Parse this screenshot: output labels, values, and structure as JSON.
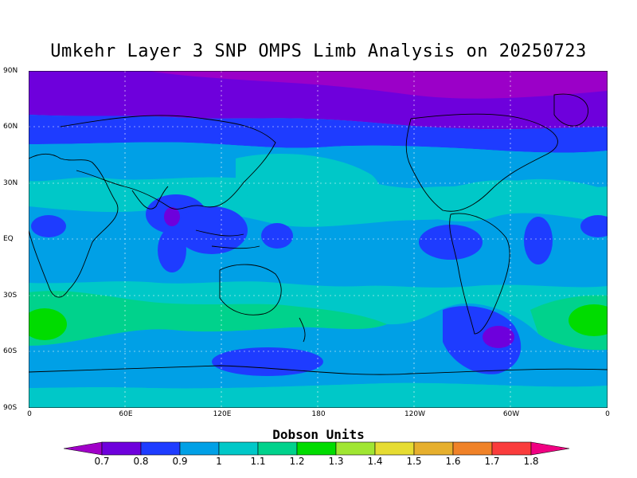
{
  "title": "Umkehr Layer 3 SNP OMPS Limb Analysis on 20250723",
  "lat_labels": [
    "90N",
    "60N",
    "30N",
    "EQ",
    "30S",
    "60S",
    "90S"
  ],
  "lon_labels": [
    "0",
    "60E",
    "120E",
    "180",
    "120W",
    "60W",
    "0"
  ],
  "colorbar": {
    "title": "Dobson Units",
    "levels": [
      "0.7",
      "0.8",
      "0.9",
      "1",
      "1.1",
      "1.2",
      "1.3",
      "1.4",
      "1.5",
      "1.6",
      "1.7",
      "1.8"
    ],
    "colors": [
      "#a000c8",
      "#6e00dc",
      "#1e3cff",
      "#00a0e6",
      "#00c8c8",
      "#00d28c",
      "#00dc00",
      "#a0e632",
      "#e6dc32",
      "#e6af2d",
      "#f08228",
      "#fa3c3c",
      "#f00082"
    ]
  },
  "field_colors": {
    "low_high_lat": "#9b00c8",
    "purple": "#6e00dc",
    "blue": "#1e3cff",
    "sky": "#00a0e6",
    "cyan": "#00c8c8",
    "green_teal": "#00d28c",
    "green": "#00dc00"
  }
}
